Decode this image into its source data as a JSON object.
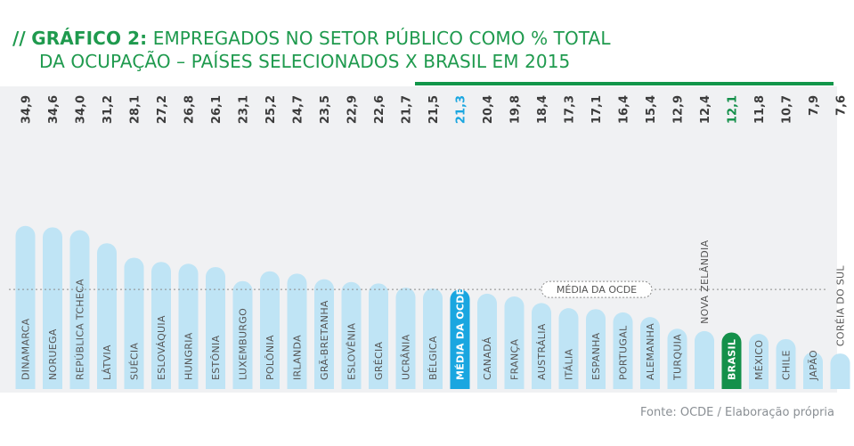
{
  "header": {
    "prefix": "//",
    "chart_number": "GRÁFICO 2:",
    "title_line1": "EMPREGADOS NO SETOR PÚBLICO COMO % TOTAL",
    "title_line2": "DA OCUPAÇÃO – PAÍSES SELECIONADOS X BRASIL EM 2015"
  },
  "source": "Fonte: OCDE / Elaboração própria",
  "colors": {
    "bar": "#bfe4f5",
    "average_bar": "#1aa6e0",
    "brazil_bar": "#14904a",
    "panel": "#f0f1f3",
    "title": "#1f9a4e",
    "value_text": "#3c3c3c"
  },
  "chart_data": {
    "type": "bar",
    "title": "",
    "xlabel": "",
    "ylabel": "",
    "ylim": [
      0,
      36
    ],
    "categories": [
      "DINAMARCA",
      "NORUEGA",
      "REPÚBLICA TCHECA",
      "LÁTVIA",
      "SUÉCIA",
      "ESLOVÁQUIA",
      "HUNGRIA",
      "ESTÔNIA",
      "LUXEMBURGO",
      "POLÔNIA",
      "IRLANDA",
      "GRÃ-BRETANHA",
      "ESLOVÊNIA",
      "GRÉCIA",
      "UCRÂNIA",
      "BÉLGICA",
      "MÉDIA DA OCDE",
      "CANADÁ",
      "FRANÇA",
      "AUSTRÁLIA",
      "ITÁLIA",
      "ESPANHA",
      "PORTUGAL",
      "ALEMANHA",
      "TURQUIA",
      "NOVA ZELÂNDIA",
      "BRASIL",
      "MÉXICO",
      "CHILE",
      "JAPÃO",
      "CORÉIA DO SUL"
    ],
    "values": [
      34.9,
      34.6,
      34.0,
      31.2,
      28.1,
      27.2,
      26.8,
      26.1,
      23.1,
      25.2,
      24.7,
      23.5,
      22.9,
      22.6,
      21.7,
      21.5,
      21.3,
      20.4,
      19.8,
      18.4,
      17.3,
      17.1,
      16.4,
      15.4,
      12.9,
      12.4,
      12.1,
      11.8,
      10.7,
      7.9,
      7.6
    ],
    "value_labels": [
      "34,9",
      "34,6",
      "34,0",
      "31,2",
      "28,1",
      "27,2",
      "26,8",
      "26,1",
      "23,1",
      "25,2",
      "24,7",
      "23,5",
      "22,9",
      "22,6",
      "21,7",
      "21,5",
      "21,3",
      "20,4",
      "19,8",
      "18,4",
      "17,3",
      "17,1",
      "16,4",
      "15,4",
      "12,9",
      "12,4",
      "12,1",
      "11,8",
      "10,7",
      "7,9",
      "7,6"
    ],
    "highlight_average": "MÉDIA DA OCDE",
    "highlight_country": "BRASIL",
    "reference_line": {
      "label": "MÉDIA DA OCDE",
      "value": 21.3
    },
    "grid": false,
    "legend": "none"
  }
}
